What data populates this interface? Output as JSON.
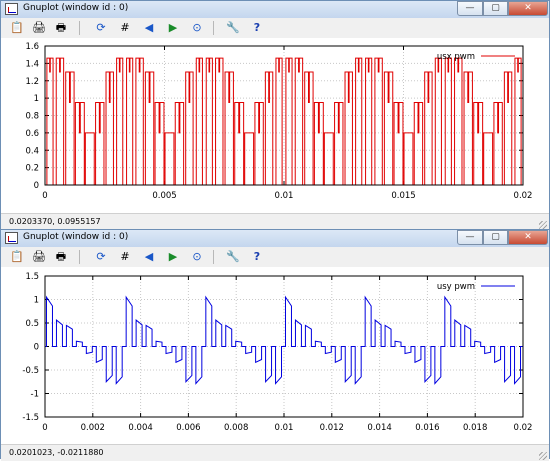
{
  "windows": [
    {
      "title": "Gnuplot (window id : 0)",
      "status": "0.0203370, 0.0955157",
      "controls": {
        "minimize": "—",
        "maximize": "▢",
        "close": "✕"
      },
      "toolbar": [
        {
          "name": "clipboard-icon",
          "glyph": "📋"
        },
        {
          "name": "print-preview-icon",
          "glyph": "🖨"
        },
        {
          "name": "print-icon",
          "glyph": "🖶"
        },
        {
          "name": "replot-icon",
          "glyph": "⟳"
        },
        {
          "name": "grid-icon",
          "glyph": "#"
        },
        {
          "name": "zoom-previous-icon",
          "glyph": "◀"
        },
        {
          "name": "zoom-next-icon",
          "glyph": "▶"
        },
        {
          "name": "autoscale-icon",
          "glyph": "⊙"
        },
        {
          "name": "options-icon",
          "glyph": "🔧"
        },
        {
          "name": "help-icon",
          "glyph": "?"
        }
      ]
    },
    {
      "title": "Gnuplot (window id : 0)",
      "status": "0.0201023, -0.0211880",
      "controls": {
        "minimize": "—",
        "maximize": "▢",
        "close": "✕"
      },
      "toolbar": [
        {
          "name": "clipboard-icon",
          "glyph": "📋"
        },
        {
          "name": "print-preview-icon",
          "glyph": "🖨"
        },
        {
          "name": "print-icon",
          "glyph": "🖶"
        },
        {
          "name": "replot-icon",
          "glyph": "⟳"
        },
        {
          "name": "grid-icon",
          "glyph": "#"
        },
        {
          "name": "zoom-previous-icon",
          "glyph": "◀"
        },
        {
          "name": "zoom-next-icon",
          "glyph": "▶"
        },
        {
          "name": "autoscale-icon",
          "glyph": "⊙"
        },
        {
          "name": "options-icon",
          "glyph": "🔧"
        },
        {
          "name": "help-icon",
          "glyph": "?"
        }
      ]
    }
  ],
  "chart_data": [
    {
      "type": "line",
      "series": [
        {
          "name": "usx pwm",
          "color": "#e00000"
        }
      ],
      "xlim": [
        0,
        0.02
      ],
      "ylim": [
        0,
        1.6
      ],
      "xticks": [
        "0",
        "0.005",
        "0.01",
        "0.015",
        "0.02"
      ],
      "yticks": [
        "0",
        "0.2",
        "0.4",
        "0.6",
        "0.8",
        "1",
        "1.2",
        "1.4",
        "1.6"
      ],
      "grid": true,
      "legend": "top-right",
      "waveform": {
        "kind": "unipolar-pwm",
        "periods": 6,
        "pulses_per_period": 8,
        "levels": [
          1.46,
          1.3,
          0.95,
          0.6
        ]
      }
    },
    {
      "type": "line",
      "series": [
        {
          "name": "usy pwm",
          "color": "#0000e0"
        }
      ],
      "xlim": [
        0,
        0.02
      ],
      "ylim": [
        -1.5,
        1.5
      ],
      "xticks": [
        "0",
        "0.002",
        "0.004",
        "0.006",
        "0.008",
        "0.01",
        "0.012",
        "0.014",
        "0.016",
        "0.018",
        "0.02"
      ],
      "yticks": [
        "-1.5",
        "-1",
        "-0.5",
        "0",
        "0.5",
        "1",
        "1.5"
      ],
      "grid": true,
      "legend": "top-right",
      "waveform": {
        "kind": "bipolar-pwm",
        "periods": 6,
        "pulses_per_period": 8,
        "peak": 1.2
      }
    }
  ]
}
